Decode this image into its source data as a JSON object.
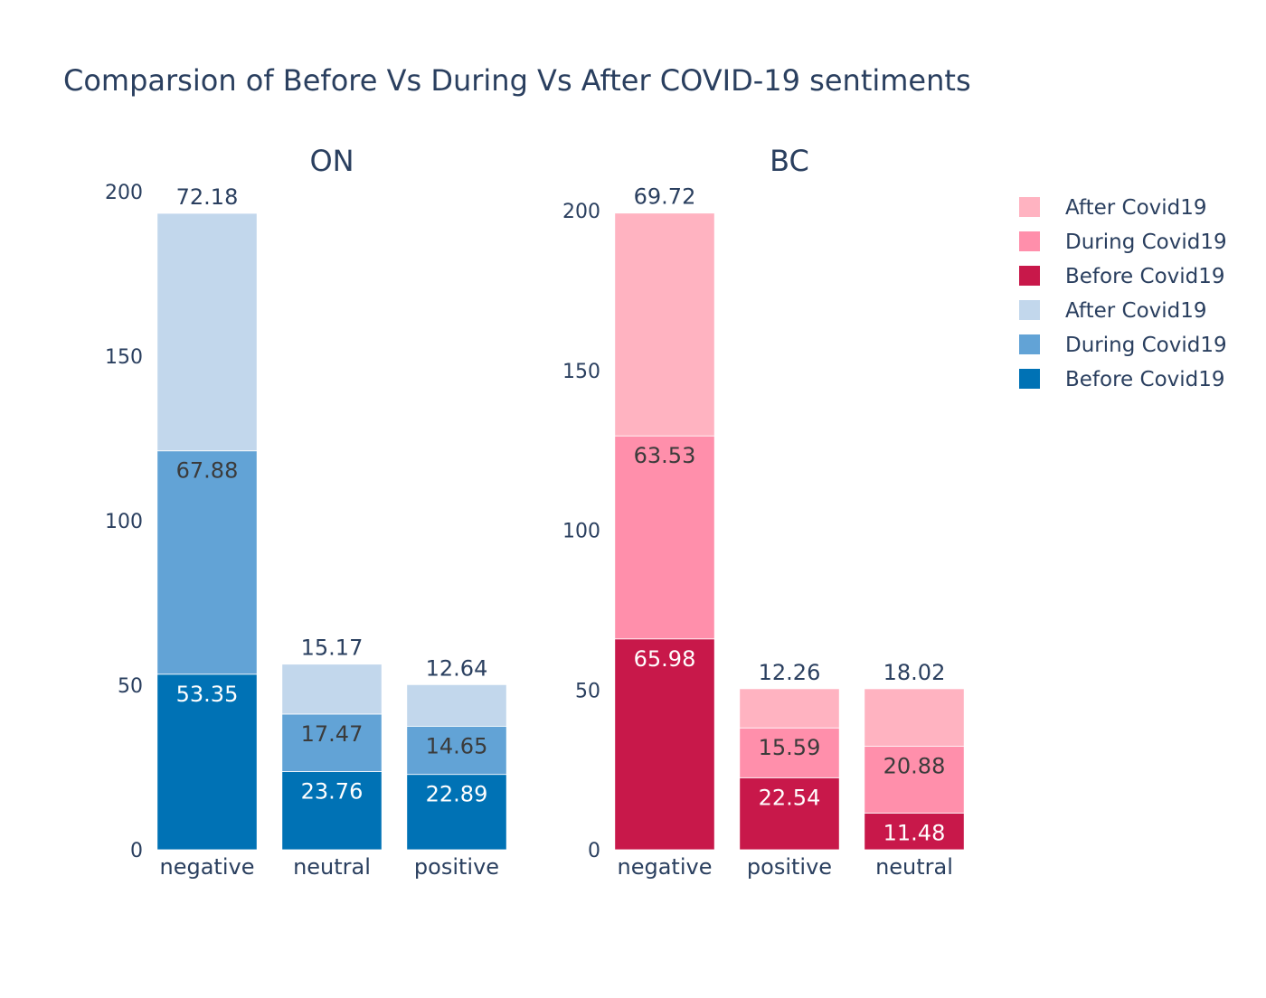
{
  "chart_data": {
    "type": "bar",
    "title": "Comparsion of Before Vs During Vs After COVID-19 sentiments",
    "subplots": [
      {
        "title": "ON",
        "categories": [
          "negative",
          "neutral",
          "positive"
        ],
        "ylim": [
          0,
          200
        ],
        "yticks": [
          0,
          50,
          100,
          150,
          200
        ],
        "series": [
          {
            "name": "Before Covid19",
            "color": "#0072b5",
            "values": [
              53.35,
              23.76,
              22.89
            ],
            "label_color": "#ffffff"
          },
          {
            "name": "During Covid19",
            "color": "#62a3d6",
            "values": [
              67.88,
              17.47,
              14.65
            ],
            "label_color": "#3b3b3b"
          },
          {
            "name": "After Covid19",
            "color": "#c2d7ec",
            "values": [
              72.18,
              15.17,
              12.64
            ],
            "label_color": "#2a3f5f"
          }
        ]
      },
      {
        "title": "BC",
        "categories": [
          "negative",
          "positive",
          "neutral"
        ],
        "ylim": [
          0,
          200
        ],
        "yticks": [
          0,
          50,
          100,
          150,
          200
        ],
        "series": [
          {
            "name": "Before Covid19",
            "color": "#c8184a",
            "values": [
              65.98,
              22.54,
              11.48
            ],
            "label_color": "#ffffff"
          },
          {
            "name": "During Covid19",
            "color": "#ff8fab",
            "values": [
              63.53,
              15.59,
              20.88
            ],
            "label_color": "#3b3b3b"
          },
          {
            "name": "After Covid19",
            "color": "#ffb3c1",
            "values": [
              69.72,
              12.26,
              18.02
            ],
            "label_color": "#2a3f5f"
          }
        ]
      }
    ],
    "legend": {
      "position": "top-right",
      "items": [
        {
          "label": "After Covid19",
          "color": "#ffb3c1"
        },
        {
          "label": "During Covid19",
          "color": "#ff8fab"
        },
        {
          "label": "Before Covid19",
          "color": "#c8184a"
        },
        {
          "label": "After Covid19",
          "color": "#c2d7ec"
        },
        {
          "label": "During Covid19",
          "color": "#62a3d6"
        },
        {
          "label": "Before Covid19",
          "color": "#0072b5"
        }
      ]
    }
  }
}
